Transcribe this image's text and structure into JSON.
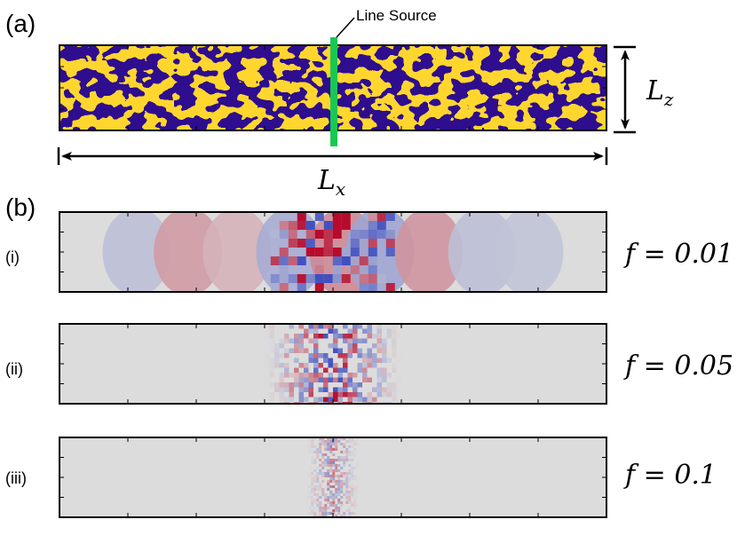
{
  "panel_a": {
    "label": "(a)",
    "source_label": "Line Source",
    "lz_label": "L",
    "lz_sub": "z",
    "lx_label": "L",
    "lx_sub": "x",
    "colors": {
      "phase_a": "#2d0f8f",
      "phase_b": "#ffd62e",
      "source": "#19c853"
    }
  },
  "panel_b": {
    "label": "(b)",
    "rows": [
      {
        "tag": "(i)",
        "f_label": "f = 0.01",
        "extent": 0.78,
        "intensity": 0.95,
        "scale": 1.0
      },
      {
        "tag": "(ii)",
        "f_label": "f = 0.05",
        "extent": 0.25,
        "intensity": 0.9,
        "scale": 0.55
      },
      {
        "tag": "(iii)",
        "f_label": "f = 0.1",
        "extent": 0.1,
        "intensity": 0.45,
        "scale": 0.3
      }
    ],
    "colors": {
      "background": "#dcdcdc",
      "positive": "#b40426",
      "negative": "#3b4cc0"
    }
  }
}
